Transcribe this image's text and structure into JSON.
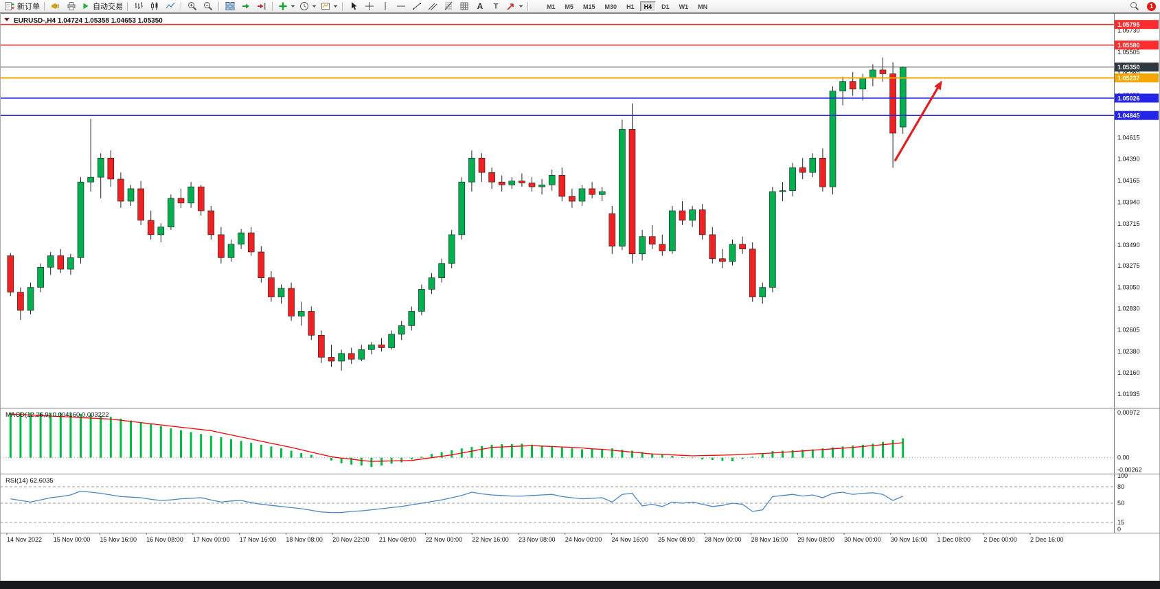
{
  "toolbar": {
    "new_order_label": "新订单",
    "auto_trading_label": "自动交易",
    "timeframes": [
      "M1",
      "M5",
      "M15",
      "M30",
      "H1",
      "H4",
      "D1",
      "W1",
      "MN"
    ],
    "active_timeframe": "H4",
    "notification_count": "1"
  },
  "chart": {
    "symbol_line": "EURUSD-,H4 1.04724 1.05358 1.04653 1.05350",
    "macd_label": "MACD(12,26,9) 0.004160 0.003222",
    "rsi_label": "RSI(14) 62.6035"
  },
  "chart_data": {
    "type": "candlestick",
    "symbol": "EURUSD-",
    "timeframe": "H4",
    "ohlc": {
      "open": 1.04724,
      "high": 1.05358,
      "low": 1.04653,
      "close": 1.0535
    },
    "price_range": [
      1.018,
      1.059
    ],
    "price_axis_labels": [
      "1.05730",
      "1.05505",
      "1.05280",
      "1.05055",
      "1.04830",
      "1.04615",
      "1.04390",
      "1.04165",
      "1.03940",
      "1.03715",
      "1.03490",
      "1.03275",
      "1.03050",
      "1.02830",
      "1.02605",
      "1.02380",
      "1.02160",
      "1.01935"
    ],
    "time_axis_labels": [
      "14 Nov 2022",
      "15 Nov 00:00",
      "15 Nov 16:00",
      "16 Nov 08:00",
      "17 Nov 00:00",
      "17 Nov 16:00",
      "18 Nov 08:00",
      "20 Nov 22:00",
      "21 Nov 08:00",
      "22 Nov 00:00",
      "22 Nov 16:00",
      "23 Nov 08:00",
      "24 Nov 00:00",
      "24 Nov 16:00",
      "25 Nov 08:00",
      "28 Nov 00:00",
      "28 Nov 16:00",
      "29 Nov 08:00",
      "30 Nov 00:00",
      "30 Nov 16:00",
      "1 Dec 08:00",
      "2 Dec 00:00",
      "2 Dec 16:00"
    ],
    "candles": [
      [
        1.0338,
        1.0341,
        1.0296,
        1.03
      ],
      [
        1.03,
        1.0305,
        1.0271,
        1.0281
      ],
      [
        1.0281,
        1.031,
        1.0277,
        1.0305
      ],
      [
        1.0305,
        1.033,
        1.03,
        1.0326
      ],
      [
        1.0326,
        1.0342,
        1.0318,
        1.0338
      ],
      [
        1.0338,
        1.0345,
        1.032,
        1.0324
      ],
      [
        1.0324,
        1.034,
        1.0318,
        1.0336
      ],
      [
        1.0336,
        1.042,
        1.033,
        1.0415
      ],
      [
        1.0415,
        1.0481,
        1.0405,
        1.042
      ],
      [
        1.042,
        1.0445,
        1.0398,
        1.044
      ],
      [
        1.044,
        1.0448,
        1.041,
        1.0418
      ],
      [
        1.0418,
        1.0425,
        1.0388,
        1.0395
      ],
      [
        1.0395,
        1.0412,
        1.039,
        1.0408
      ],
      [
        1.0408,
        1.0416,
        1.037,
        1.0375
      ],
      [
        1.0375,
        1.0385,
        1.0355,
        1.036
      ],
      [
        1.036,
        1.0372,
        1.0352,
        1.0368
      ],
      [
        1.0368,
        1.0402,
        1.0365,
        1.0398
      ],
      [
        1.0398,
        1.0408,
        1.0388,
        1.0393
      ],
      [
        1.0393,
        1.0415,
        1.0388,
        1.041
      ],
      [
        1.041,
        1.0412,
        1.038,
        1.0385
      ],
      [
        1.0385,
        1.039,
        1.0355,
        1.036
      ],
      [
        1.036,
        1.0368,
        1.033,
        1.0336
      ],
      [
        1.0336,
        1.0355,
        1.0332,
        1.035
      ],
      [
        1.035,
        1.0366,
        1.0345,
        1.0362
      ],
      [
        1.0362,
        1.0368,
        1.0338,
        1.0342
      ],
      [
        1.0342,
        1.0348,
        1.031,
        1.0315
      ],
      [
        1.0315,
        1.0322,
        1.029,
        1.0295
      ],
      [
        1.0295,
        1.0308,
        1.0288,
        1.0304
      ],
      [
        1.0304,
        1.031,
        1.027,
        1.0275
      ],
      [
        1.0275,
        1.029,
        1.0265,
        1.028
      ],
      [
        1.028,
        1.0285,
        1.025,
        1.0255
      ],
      [
        1.0255,
        1.026,
        1.0226,
        1.0232
      ],
      [
        1.0232,
        1.0245,
        1.0222,
        1.0228
      ],
      [
        1.0228,
        1.024,
        1.0218,
        1.0236
      ],
      [
        1.0236,
        1.0242,
        1.0225,
        1.023
      ],
      [
        1.023,
        1.0245,
        1.0228,
        1.024
      ],
      [
        1.024,
        1.0248,
        1.0235,
        1.0245
      ],
      [
        1.0245,
        1.0252,
        1.0238,
        1.0242
      ],
      [
        1.0242,
        1.026,
        1.024,
        1.0256
      ],
      [
        1.0256,
        1.027,
        1.025,
        1.0265
      ],
      [
        1.0265,
        1.0285,
        1.026,
        1.028
      ],
      [
        1.028,
        1.0308,
        1.0276,
        1.0303
      ],
      [
        1.0303,
        1.032,
        1.0298,
        1.0315
      ],
      [
        1.0315,
        1.0335,
        1.031,
        1.033
      ],
      [
        1.033,
        1.0365,
        1.0325,
        1.036
      ],
      [
        1.036,
        1.042,
        1.0355,
        1.0415
      ],
      [
        1.0415,
        1.0448,
        1.0405,
        1.044
      ],
      [
        1.044,
        1.0445,
        1.0415,
        1.0425
      ],
      [
        1.0425,
        1.043,
        1.0408,
        1.0415
      ],
      [
        1.0415,
        1.0422,
        1.0405,
        1.0412
      ],
      [
        1.0412,
        1.042,
        1.0408,
        1.0416
      ],
      [
        1.0416,
        1.0424,
        1.041,
        1.0414
      ],
      [
        1.0414,
        1.042,
        1.0405,
        1.041
      ],
      [
        1.041,
        1.0418,
        1.0402,
        1.0412
      ],
      [
        1.0412,
        1.0428,
        1.0406,
        1.0422
      ],
      [
        1.0422,
        1.043,
        1.0395,
        1.04
      ],
      [
        1.04,
        1.0408,
        1.0388,
        1.0395
      ],
      [
        1.0395,
        1.0412,
        1.039,
        1.0408
      ],
      [
        1.0408,
        1.0415,
        1.0398,
        1.0402
      ],
      [
        1.0402,
        1.041,
        1.0395,
        1.0405
      ],
      [
        1.0382,
        1.039,
        1.034,
        1.0348
      ],
      [
        1.0348,
        1.048,
        1.0344,
        1.047
      ],
      [
        1.047,
        1.0497,
        1.033,
        1.034
      ],
      [
        1.034,
        1.0365,
        1.0333,
        1.0358
      ],
      [
        1.0358,
        1.037,
        1.0345,
        1.035
      ],
      [
        1.035,
        1.036,
        1.0338,
        1.0343
      ],
      [
        1.0343,
        1.039,
        1.034,
        1.0385
      ],
      [
        1.0385,
        1.0395,
        1.037,
        1.0375
      ],
      [
        1.0375,
        1.039,
        1.0368,
        1.0386
      ],
      [
        1.0386,
        1.0392,
        1.0355,
        1.036
      ],
      [
        1.036,
        1.0368,
        1.033,
        1.0335
      ],
      [
        1.0335,
        1.0345,
        1.0325,
        1.0332
      ],
      [
        1.0332,
        1.0355,
        1.0328,
        1.035
      ],
      [
        1.035,
        1.0358,
        1.034,
        1.0345
      ],
      [
        1.0345,
        1.0352,
        1.029,
        1.0295
      ],
      [
        1.0295,
        1.031,
        1.0288,
        1.0305
      ],
      [
        1.0305,
        1.041,
        1.03,
        1.0405
      ],
      [
        1.0405,
        1.0415,
        1.0395,
        1.0406
      ],
      [
        1.0406,
        1.0435,
        1.04,
        1.043
      ],
      [
        1.043,
        1.044,
        1.0418,
        1.0425
      ],
      [
        1.0425,
        1.0445,
        1.042,
        1.044
      ],
      [
        1.044,
        1.045,
        1.0405,
        1.041
      ],
      [
        1.041,
        1.0515,
        1.0402,
        1.051
      ],
      [
        1.051,
        1.0525,
        1.0495,
        1.052
      ],
      [
        1.052,
        1.053,
        1.0505,
        1.0512
      ],
      [
        1.0512,
        1.0528,
        1.05,
        1.0524
      ],
      [
        1.0524,
        1.0538,
        1.0515,
        1.0532
      ],
      [
        1.0532,
        1.0545,
        1.052,
        1.0528
      ],
      [
        1.0528,
        1.054,
        1.043,
        1.0466
      ],
      [
        1.04724,
        1.05358,
        1.04653,
        1.0535
      ]
    ],
    "hlines": [
      {
        "price": 1.05795,
        "label": "1.05795",
        "color": "#ff2d2d",
        "badge_color": "#ff2d2d",
        "width": 1.6
      },
      {
        "price": 1.0558,
        "label": "1.05580",
        "color": "#ff2d2d",
        "badge_color": "#ff2d2d",
        "width": 1.6
      },
      {
        "price": 1.0535,
        "label": "1.05350",
        "color": "#555555",
        "badge_color": "#30383f",
        "width": 1.1
      },
      {
        "price": 1.05237,
        "label": "1.05237",
        "color": "#f7a600",
        "badge_color": "#f7a600",
        "width": 2
      },
      {
        "price": 1.05026,
        "label": "1.05026",
        "color": "#2525e8",
        "badge_color": "#2525e8",
        "width": 1.6
      },
      {
        "price": 1.04845,
        "label": "1.04845",
        "color": "#2525e8",
        "badge_color": "#2525e8",
        "width": 1.6
      }
    ],
    "arrow_annotation": {
      "from_bar": 88.2,
      "from_price": 1.0437,
      "to_bar": 92.9,
      "to_price": 1.0521,
      "color": "#e02020"
    },
    "macd": {
      "params": "12,26,9",
      "value": 0.00416,
      "signal_value": 0.003222,
      "axis_labels": [
        "0.00972",
        "0.00",
        "-0.00262"
      ],
      "axis_values": [
        0.00972,
        0,
        -0.00262
      ],
      "range": [
        -0.003,
        0.01
      ],
      "hist": [
        0.0097,
        0.00968,
        0.00967,
        0.00965,
        0.00963,
        0.00962,
        0.0096,
        0.0094,
        0.0092,
        0.009,
        0.0088,
        0.0084,
        0.008,
        0.0076,
        0.0072,
        0.0068,
        0.0063,
        0.0059,
        0.0055,
        0.0051,
        0.0047,
        0.0044,
        0.004,
        0.0036,
        0.0032,
        0.0028,
        0.0024,
        0.002,
        0.0015,
        0.001,
        0.0006,
        0,
        -0.0006,
        -0.0012,
        -0.0015,
        -0.0017,
        -0.002,
        -0.0017,
        -0.0013,
        -0.001,
        -0.0004,
        0.0002,
        0.0008,
        0.0012,
        0.0016,
        0.002,
        0.0023,
        0.0025,
        0.0028,
        0.0029,
        0.0029,
        0.003,
        0.0028,
        0.0026,
        0.0024,
        0.0022,
        0.002,
        0.0018,
        0.0019,
        0.0019,
        0.002,
        0.0017,
        0.0015,
        0.0012,
        0.0009,
        0.0007,
        0.0004,
        0.0001,
        -0.0001,
        -0.0004,
        -0.0005,
        -0.0007,
        -0.0008,
        -0.0003,
        0.0002,
        0.0008,
        0.0014,
        0.0015,
        0.0016,
        0.0017,
        0.0018,
        0.002,
        0.0022,
        0.0024,
        0.0026,
        0.0028,
        0.003,
        0.0034,
        0.0038,
        0.00416
      ],
      "signal": [
        0.0094,
        0.00929,
        0.00918,
        0.00907,
        0.00896,
        0.00885,
        0.00874,
        0.00863,
        0.00852,
        0.00841,
        0.0083,
        0.00805,
        0.0078,
        0.00755,
        0.0073,
        0.00705,
        0.0068,
        0.00655,
        0.0063,
        0.00605,
        0.0058,
        0.00535,
        0.0049,
        0.00445,
        0.004,
        0.00355,
        0.0031,
        0.00265,
        0.0022,
        0.0017,
        0.0012,
        0.0007,
        0.0002,
        -0.0001,
        -0.0003,
        -0.0006,
        -0.0008,
        -0.00075,
        -0.0007,
        -0.00065,
        -0.0006,
        -0.0003,
        0,
        0.0003,
        0.0006,
        0.001,
        0.0014,
        0.0018,
        0.0022,
        0.0023,
        0.0024,
        0.0025,
        0.0026,
        0.0025,
        0.0024,
        0.0023,
        0.0022,
        0.0021,
        0.0019,
        0.0018,
        0.0016,
        0.0014,
        0.0012,
        0.001,
        0.0008,
        0.0007,
        0.0006,
        0.0005,
        0.0004,
        0.00045,
        0.0005,
        0.00055,
        0.0006,
        0.0007,
        0.0008,
        0.0009,
        0.001,
        0.00115,
        0.0013,
        0.00145,
        0.0016,
        0.00175,
        0.0019,
        0.00205,
        0.0022,
        0.0024,
        0.0026,
        0.0028,
        0.003,
        0.00322
      ]
    },
    "rsi": {
      "period": 14,
      "value": 62.6035,
      "levels": [
        80,
        50,
        15
      ],
      "axis_labels": [
        [
          "100",
          100
        ],
        [
          "80",
          80
        ],
        [
          "50",
          50
        ],
        [
          "15",
          15
        ],
        [
          "0",
          0
        ]
      ],
      "range": [
        0,
        100
      ],
      "values": [
        58,
        55,
        52,
        56,
        60,
        62,
        65,
        72,
        70,
        68,
        65,
        62,
        61,
        60,
        57,
        55,
        56,
        58,
        59,
        60,
        56,
        52,
        54,
        55,
        51,
        48,
        46,
        44,
        42,
        40,
        37,
        34,
        33,
        33,
        35,
        36,
        38,
        40,
        42,
        44,
        47,
        50,
        53,
        56,
        60,
        64,
        70,
        67,
        65,
        64,
        63,
        63,
        64,
        65,
        66,
        62,
        60,
        58,
        59,
        60,
        52,
        66,
        68,
        45,
        48,
        44,
        52,
        50,
        52,
        48,
        44,
        46,
        50,
        48,
        35,
        38,
        62,
        64,
        66,
        63,
        65,
        60,
        68,
        70,
        66,
        68,
        69,
        66,
        55,
        62.6
      ]
    },
    "colors": {
      "candle_up": "#00b050",
      "candle_down": "#ee2222",
      "candle_wick": "#222222",
      "candle_border": "#1a1a1a",
      "macd_hist": "#00bb44",
      "macd_signal": "#ff0000",
      "rsi_line": "#4a86c8",
      "axis_text": "#111111",
      "grid": "#aaaaaa"
    }
  }
}
